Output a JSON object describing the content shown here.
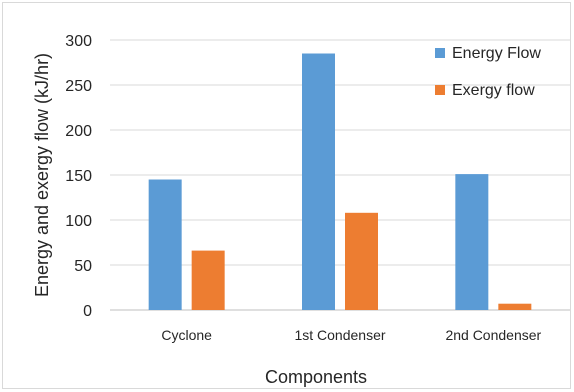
{
  "chart_data": {
    "type": "bar",
    "title": "",
    "xlabel": "Components",
    "ylabel": "Energy and exergy flow (kJ/hr)",
    "categories": [
      "Cyclone",
      "1st Condenser",
      "2nd Condenser"
    ],
    "series": [
      {
        "name": "Energy Flow",
        "values": [
          145,
          285,
          151
        ],
        "color": "#5b9bd5"
      },
      {
        "name": "Exergy flow",
        "values": [
          66,
          108,
          7
        ],
        "color": "#ed7d31"
      }
    ],
    "ylim": [
      0,
      300
    ],
    "yticks": [
      0,
      50,
      100,
      150,
      200,
      250,
      300
    ],
    "grid": true,
    "legend_position": "top-right"
  }
}
